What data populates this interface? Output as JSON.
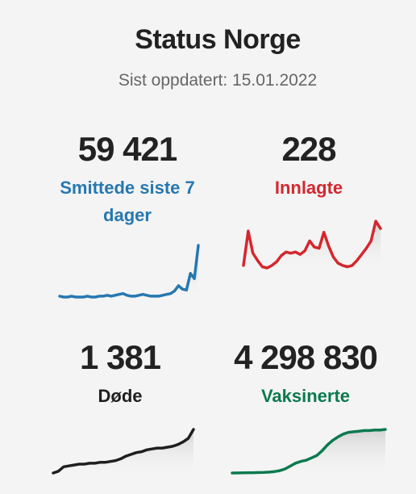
{
  "header": {
    "title": "Status Norge",
    "updated": "Sist oppdatert: 15.01.2022"
  },
  "stats": [
    {
      "value": "59 421",
      "label": "Smittede siste 7 dager",
      "color": "#2678b0"
    },
    {
      "value": "228",
      "label": "Innlagte",
      "color": "#d4272e"
    },
    {
      "value": "1 381",
      "label": "Døde",
      "color": "#1f1f1f"
    },
    {
      "value": "4 298 830",
      "label": "Vaksinerte",
      "color": "#0b7a4f"
    }
  ],
  "chart_data": [
    {
      "type": "area",
      "series": [
        {
          "values": [
            2,
            1,
            1,
            2,
            1,
            1,
            1,
            2,
            1,
            1,
            2,
            2,
            3,
            2,
            3,
            4,
            5,
            3,
            2,
            2,
            3,
            4,
            3,
            2,
            2,
            2,
            3,
            4,
            5,
            8,
            14,
            10,
            9,
            28,
            22,
            60
          ]
        }
      ]
    },
    {
      "type": "area",
      "series": [
        {
          "values": [
            10,
            38,
            20,
            14,
            9,
            8,
            10,
            13,
            18,
            21,
            20,
            21,
            19,
            22,
            30,
            25,
            24,
            37,
            26,
            17,
            12,
            10,
            9,
            10,
            14,
            19,
            24,
            30,
            46,
            40
          ]
        }
      ]
    },
    {
      "type": "area",
      "series": [
        {
          "values": [
            1,
            3,
            8,
            9,
            10,
            11,
            11,
            12,
            12,
            13,
            13,
            14,
            15,
            17,
            20,
            22,
            24,
            25,
            27,
            28,
            29,
            29,
            30,
            31,
            33,
            36,
            40,
            50
          ]
        }
      ]
    },
    {
      "type": "area",
      "series": [
        {
          "values": [
            0,
            0.2,
            0.3,
            0.5,
            0.6,
            0.8,
            1,
            1.5,
            2.5,
            4,
            7,
            12,
            17,
            20,
            22,
            26,
            30,
            38,
            48,
            56,
            62,
            67,
            70,
            71,
            72,
            73,
            73,
            74,
            74,
            75
          ]
        }
      ]
    }
  ]
}
